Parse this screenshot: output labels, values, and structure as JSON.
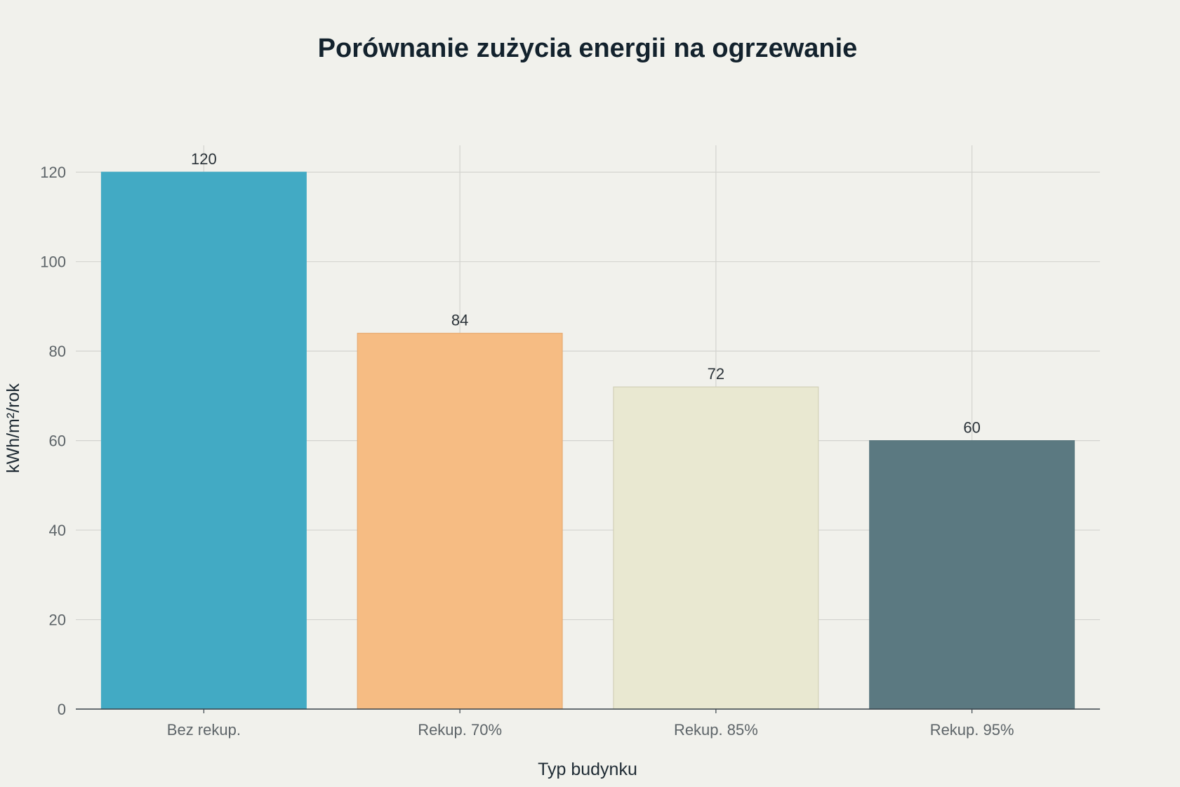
{
  "chart_data": {
    "type": "bar",
    "title": "Porównanie zużycia energii na ogrzewanie",
    "xlabel": "Typ budynku",
    "ylabel": "kWh/m²/rok",
    "categories": [
      "Bez rekup.",
      "Rekup. 70%",
      "Rekup. 85%",
      "Rekup. 95%"
    ],
    "values": [
      120,
      84,
      72,
      60
    ],
    "colors": [
      "#42aac4",
      "#f6bc83",
      "#e9e8d1",
      "#5b7981"
    ],
    "data_labels": [
      "120",
      "84",
      "72",
      "60"
    ],
    "ylim": [
      0,
      126
    ],
    "yticks": [
      0,
      20,
      40,
      60,
      80,
      100,
      120
    ],
    "ytick_labels": [
      "0",
      "20",
      "40",
      "60",
      "80",
      "100",
      "120"
    ],
    "grid": true,
    "legend": "none"
  }
}
